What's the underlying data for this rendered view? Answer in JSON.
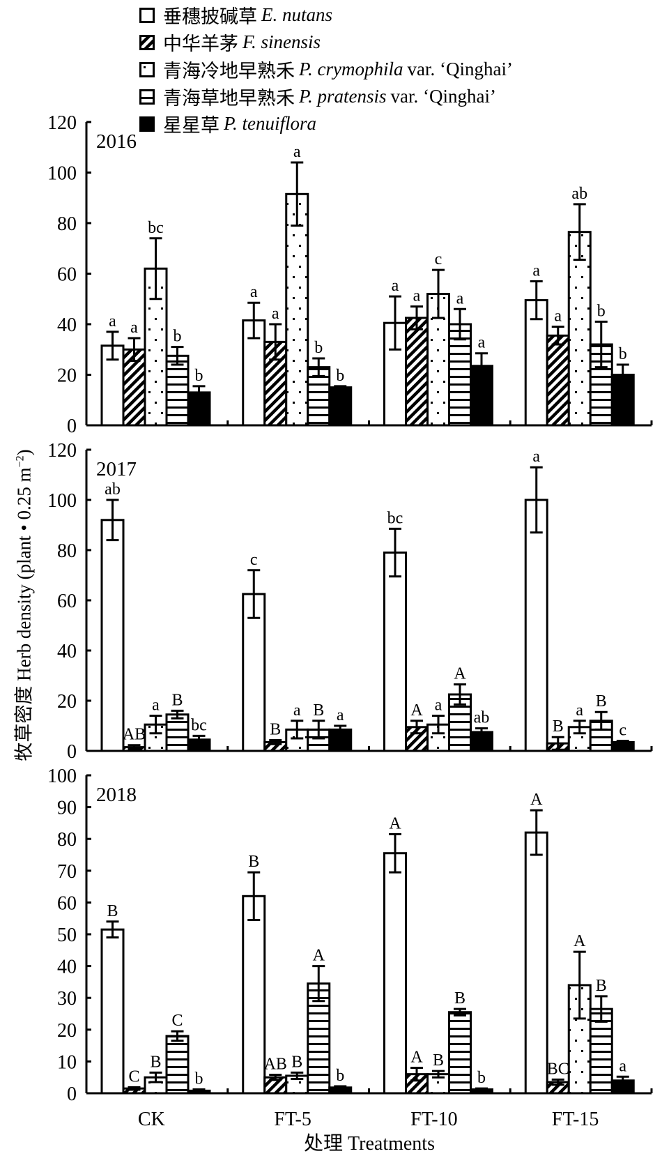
{
  "legend": [
    {
      "cn": "垂穗披碱草",
      "sci": "E. nutans",
      "var": "",
      "pattern": "open"
    },
    {
      "cn": "中华羊茅",
      "sci": "F. sinensis",
      "var": "",
      "pattern": "diagonal"
    },
    {
      "cn": "青海冷地早熟禾",
      "sci": "P. crymophila",
      "var": "var. ‘Qinghai’",
      "pattern": "dots"
    },
    {
      "cn": "青海草地早熟禾",
      "sci": "P. pratensis",
      "var": "var. ‘Qinghai’",
      "pattern": "horizontal"
    },
    {
      "cn": "星星草",
      "sci": "P. tenuiflora",
      "var": "",
      "pattern": "solid"
    }
  ],
  "ylabel": {
    "text": "牧草密度 Herb density (plant • 0.25 m",
    "sup": "−2",
    "close": ")"
  },
  "xtitle": "处理 Treatments",
  "chart_data": {
    "type": "bar",
    "xlabel": "处理 Treatments",
    "ylabel": "牧草密度 Herb density (plant • 0.25 m−2)",
    "categories": [
      "CK",
      "FT-5",
      "FT-10",
      "FT-15"
    ],
    "series_names": [
      "垂穗披碱草 E. nutans",
      "中华羊茅 F. sinensis",
      "青海冷地早熟禾 P. crymophila var. ‘Qinghai’",
      "青海草地早熟禾 P. pratensis var. ‘Qinghai’",
      "星星草 P. tenuiflora"
    ],
    "legend_position": "top",
    "grid": false,
    "panels": [
      {
        "title": "2016",
        "ylim": [
          0,
          120
        ],
        "yticks": [
          0,
          20,
          40,
          60,
          80,
          100,
          120
        ],
        "series": [
          {
            "name": "E. nutans",
            "values": [
              31.5,
              41.5,
              40.5,
              49.5
            ],
            "errors": [
              5.5,
              7,
              10.5,
              7.5
            ],
            "labels": [
              "a",
              "a",
              "a",
              "a"
            ]
          },
          {
            "name": "F. sinensis",
            "values": [
              30,
              33,
              42.5,
              35.5
            ],
            "errors": [
              4.5,
              7,
              4.5,
              3.5
            ],
            "labels": [
              "a",
              "a",
              "a",
              "a"
            ]
          },
          {
            "name": "P. crymophila var. Qinghai",
            "values": [
              62,
              91.5,
              52,
              76.5
            ],
            "errors": [
              12,
              12.5,
              9.5,
              11
            ],
            "labels": [
              "bc",
              "a",
              "c",
              "ab"
            ]
          },
          {
            "name": "P. pratensis var. Qinghai",
            "values": [
              27.5,
              23,
              40,
              32
            ],
            "errors": [
              3.5,
              3.5,
              6,
              9
            ],
            "labels": [
              "b",
              "b",
              "a",
              "b"
            ]
          },
          {
            "name": "P. tenuiflora",
            "values": [
              13,
              15,
              23.5,
              20
            ],
            "errors": [
              2.5,
              0.5,
              5,
              4
            ],
            "labels": [
              "b",
              "b",
              "a",
              "b"
            ]
          }
        ]
      },
      {
        "title": "2017",
        "ylim": [
          0,
          120
        ],
        "yticks": [
          0,
          20,
          40,
          60,
          80,
          100,
          120
        ],
        "series": [
          {
            "name": "E. nutans",
            "values": [
              92,
              62.5,
              79,
              100
            ],
            "errors": [
              8,
              9.5,
              9.5,
              13
            ],
            "labels": [
              "ab",
              "c",
              "bc",
              "a"
            ]
          },
          {
            "name": "F. sinensis",
            "values": [
              1.5,
              3.5,
              9.5,
              3
            ],
            "errors": [
              0.8,
              0.8,
              2.5,
              2.5
            ],
            "labels": [
              "AB",
              "B",
              "A",
              "B"
            ]
          },
          {
            "name": "P. crymophila var. Qinghai",
            "values": [
              10.5,
              8.5,
              10.5,
              9.5
            ],
            "errors": [
              3.5,
              3.5,
              3.5,
              2.5
            ],
            "labels": [
              "a",
              "a",
              "a",
              "a"
            ]
          },
          {
            "name": "P. pratensis var. Qinghai",
            "values": [
              14.5,
              8.5,
              22.5,
              12
            ],
            "errors": [
              1.5,
              3.5,
              4,
              3.5
            ],
            "labels": [
              "B",
              "B",
              "A",
              "B"
            ]
          },
          {
            "name": "P. tenuiflora",
            "values": [
              4.5,
              8.5,
              7.5,
              3.5
            ],
            "errors": [
              1.5,
              1.5,
              1.5,
              0.5
            ],
            "labels": [
              "bc",
              "a",
              "ab",
              "c"
            ]
          }
        ]
      },
      {
        "title": "2018",
        "ylim": [
          0,
          100
        ],
        "yticks": [
          0,
          10,
          20,
          30,
          40,
          50,
          60,
          70,
          80,
          90,
          100
        ],
        "series": [
          {
            "name": "E. nutans",
            "values": [
              51.5,
              62,
              75.5,
              82
            ],
            "errors": [
              2.5,
              7.5,
              6,
              7
            ],
            "labels": [
              "B",
              "B",
              "A",
              "A"
            ]
          },
          {
            "name": "F. sinensis",
            "values": [
              1.5,
              5,
              6,
              3.5
            ],
            "errors": [
              0.4,
              0.8,
              2,
              0.8
            ],
            "labels": [
              "C",
              "AB",
              "A",
              "BC"
            ]
          },
          {
            "name": "P. crymophila var. Qinghai",
            "values": [
              5,
              5.5,
              6,
              34
            ],
            "errors": [
              1.5,
              1,
              1,
              10.5
            ],
            "labels": [
              "B",
              "B",
              "B",
              "A"
            ]
          },
          {
            "name": "P. pratensis var. Qinghai",
            "values": [
              18,
              34.5,
              25.5,
              26.5
            ],
            "errors": [
              1.5,
              5.5,
              1,
              4
            ],
            "labels": [
              "C",
              "A",
              "B",
              "B"
            ]
          },
          {
            "name": "P. tenuiflora",
            "values": [
              0.8,
              1.8,
              1.2,
              4
            ],
            "errors": [
              0.4,
              0.4,
              0.3,
              1.2
            ],
            "labels": [
              "b",
              "b",
              "b",
              "a"
            ]
          }
        ]
      }
    ]
  }
}
